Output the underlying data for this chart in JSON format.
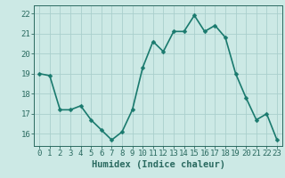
{
  "x": [
    0,
    1,
    2,
    3,
    4,
    5,
    6,
    7,
    8,
    9,
    10,
    11,
    12,
    13,
    14,
    15,
    16,
    17,
    18,
    19,
    20,
    21,
    22,
    23
  ],
  "y": [
    19.0,
    18.9,
    17.2,
    17.2,
    17.4,
    16.7,
    16.2,
    15.7,
    16.1,
    17.2,
    19.3,
    20.6,
    20.1,
    21.1,
    21.1,
    21.9,
    21.1,
    21.4,
    20.8,
    19.0,
    17.8,
    16.7,
    17.0,
    15.7
  ],
  "line_color": "#1a7a6e",
  "marker_color": "#1a7a6e",
  "bg_color": "#cce9e5",
  "grid_color": "#aacfcc",
  "xlabel": "Humidex (Indice chaleur)",
  "ylim": [
    15.4,
    22.4
  ],
  "yticks": [
    16,
    17,
    18,
    19,
    20,
    21,
    22
  ],
  "xticks": [
    0,
    1,
    2,
    3,
    4,
    5,
    6,
    7,
    8,
    9,
    10,
    11,
    12,
    13,
    14,
    15,
    16,
    17,
    18,
    19,
    20,
    21,
    22,
    23
  ],
  "tick_color": "#2a6a60",
  "spine_color": "#2a6a60",
  "xlabel_fontsize": 7.5,
  "tick_fontsize": 6.5,
  "line_width": 1.2,
  "marker_size": 2.5
}
